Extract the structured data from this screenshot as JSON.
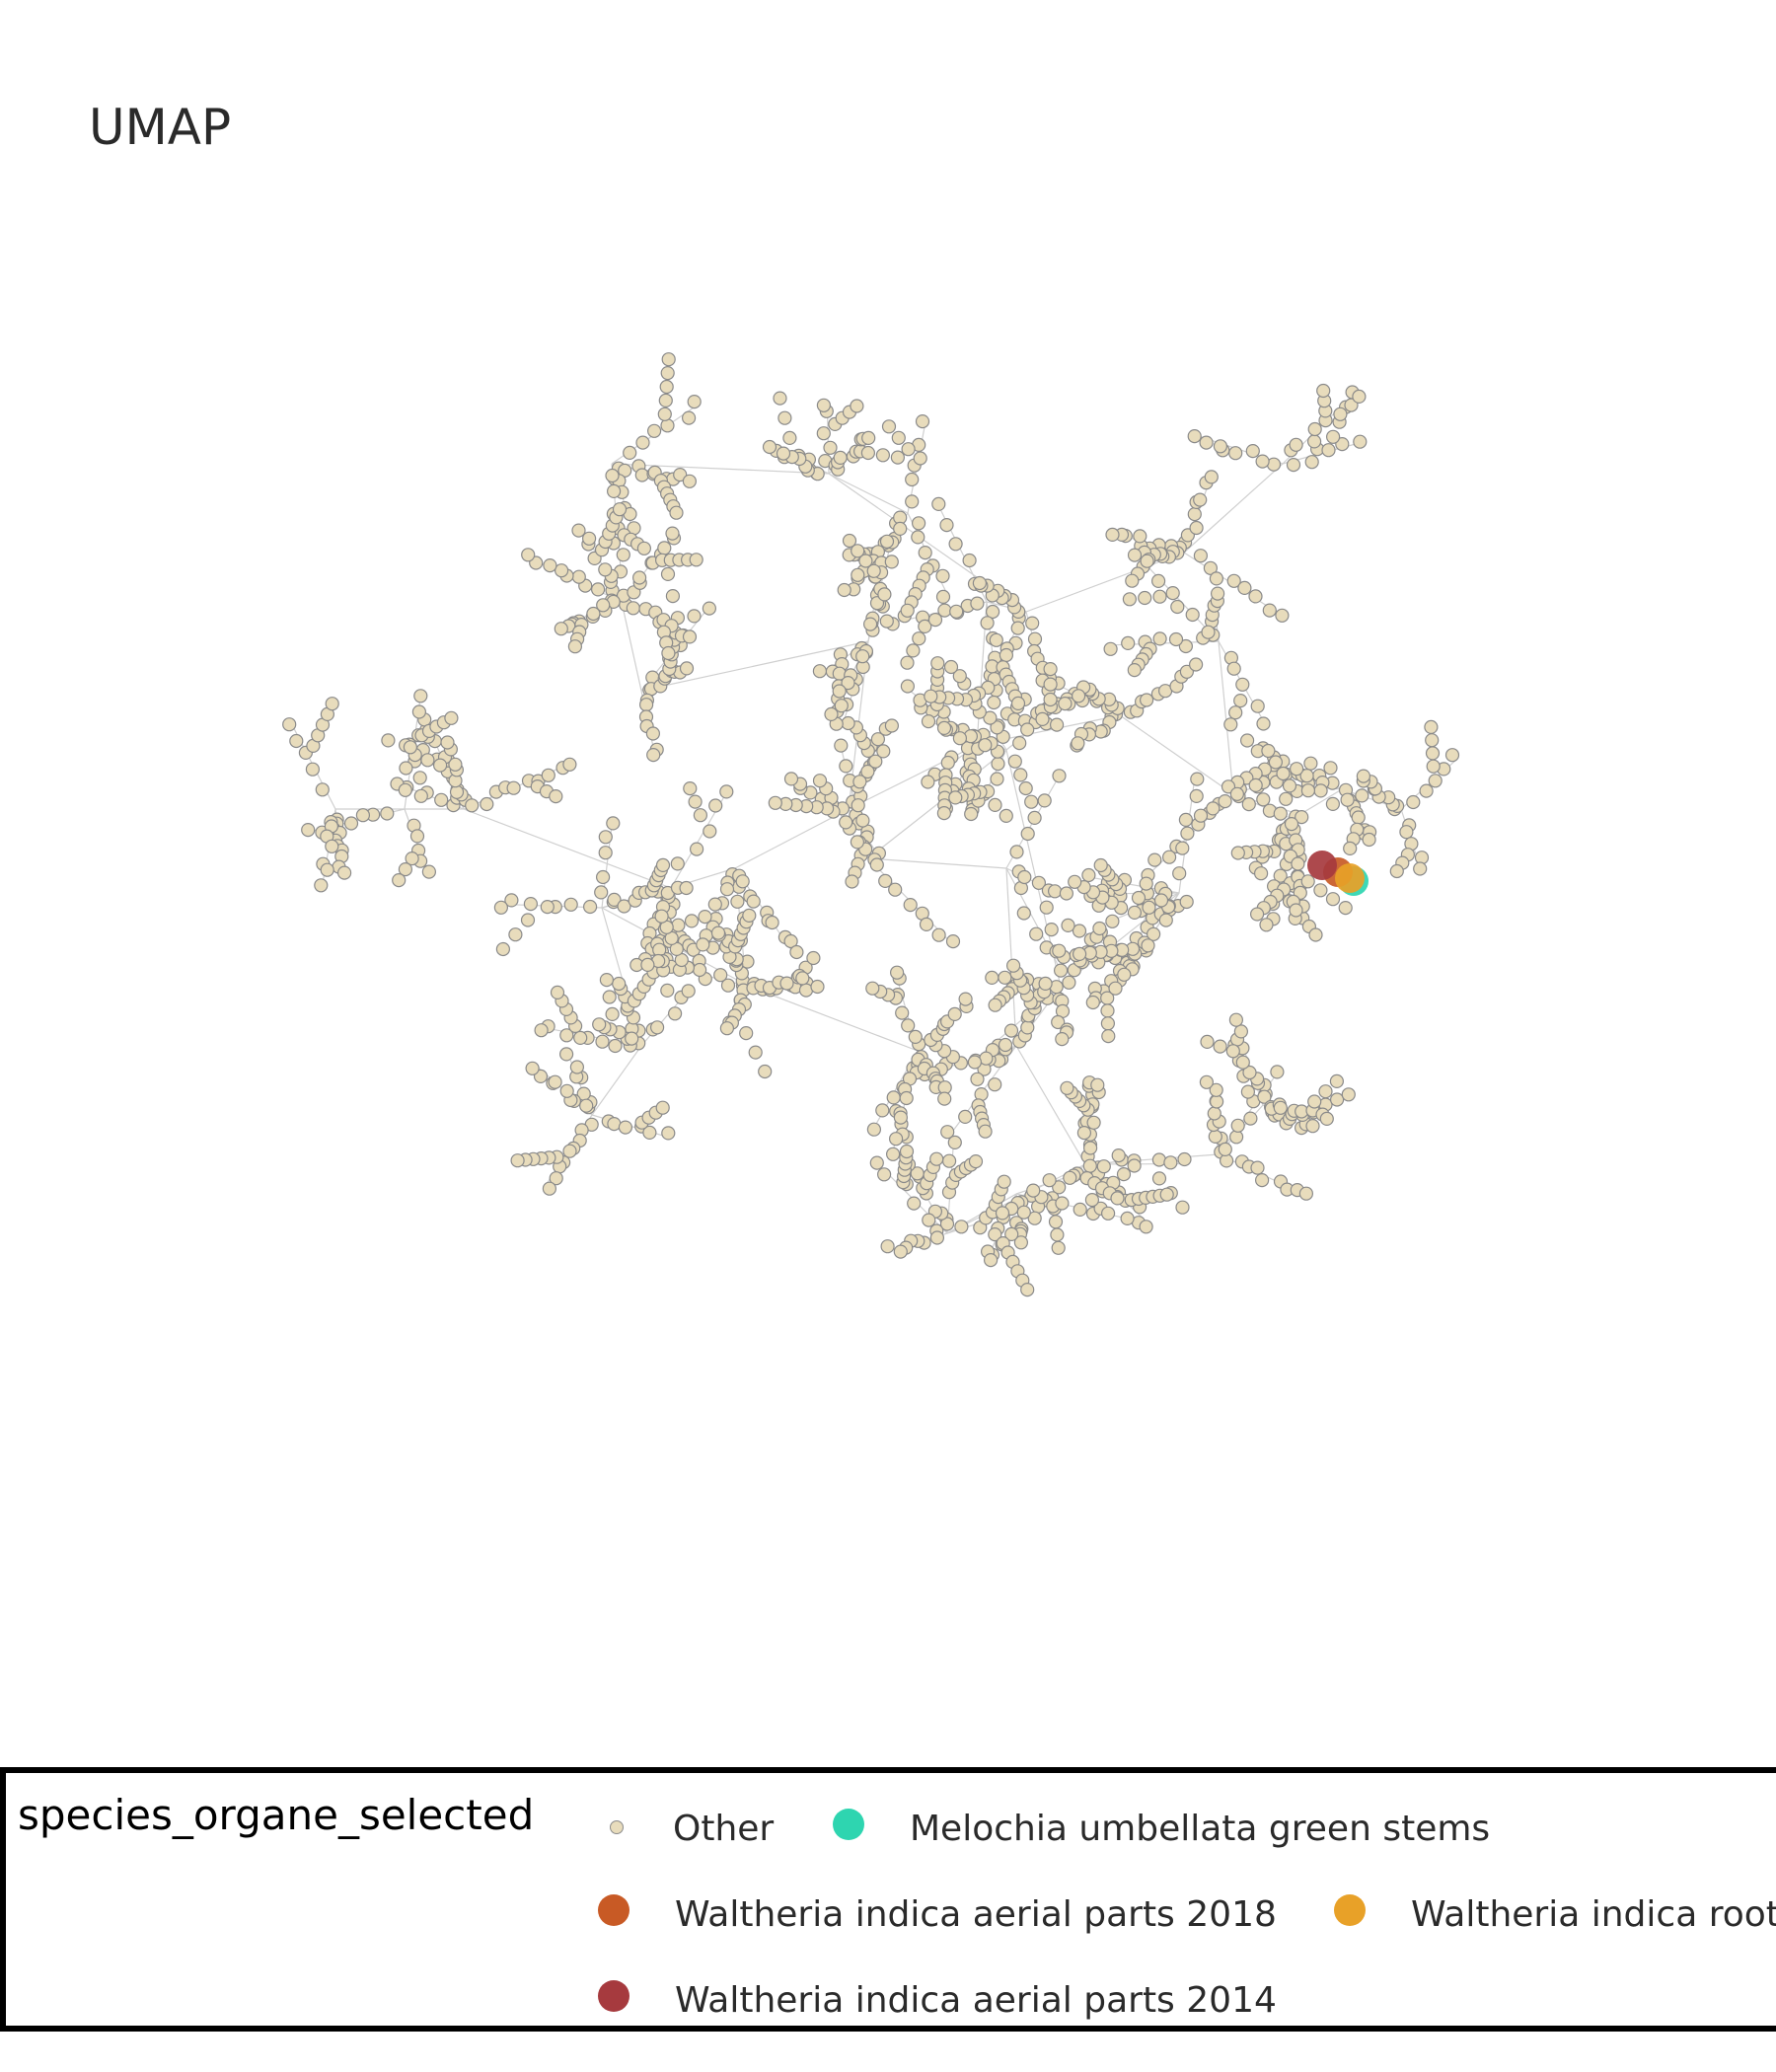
{
  "chart_data": {
    "type": "scatter",
    "title": "UMAP",
    "legend_title": "species_organe_selected",
    "legend_placement": "bottom",
    "grid": false,
    "axes_visible": false,
    "colors": {
      "Other": "#e8dcbc",
      "Melochia umbellata green stems": "#2ed5b0",
      "Waltheria indica aerial parts 2018": "#c85a25",
      "Waltheria indica roots": "#e8a128",
      "Waltheria indica aerial parts 2014": "#a63a3e",
      "edge": "#cfcfcf",
      "marker_outline": "#8a8a8a"
    },
    "series": [
      {
        "name": "Other"
      },
      {
        "name": "Melochia umbellata green stems",
        "points": [
          [
            1372,
            893
          ]
        ]
      },
      {
        "name": "Waltheria indica aerial parts 2018",
        "points": [
          [
            1356,
            884
          ]
        ]
      },
      {
        "name": "Waltheria indica roots",
        "points": [
          [
            1368,
            890
          ]
        ]
      },
      {
        "name": "Waltheria indica aerial parts 2014",
        "points": [
          [
            1340,
            877
          ]
        ]
      }
    ],
    "legend_entries": [
      "Other",
      "Melochia umbellata green stems",
      "Waltheria indica aerial parts 2018",
      "Waltheria indica roots",
      "Waltheria indica aerial parts 2014"
    ]
  }
}
